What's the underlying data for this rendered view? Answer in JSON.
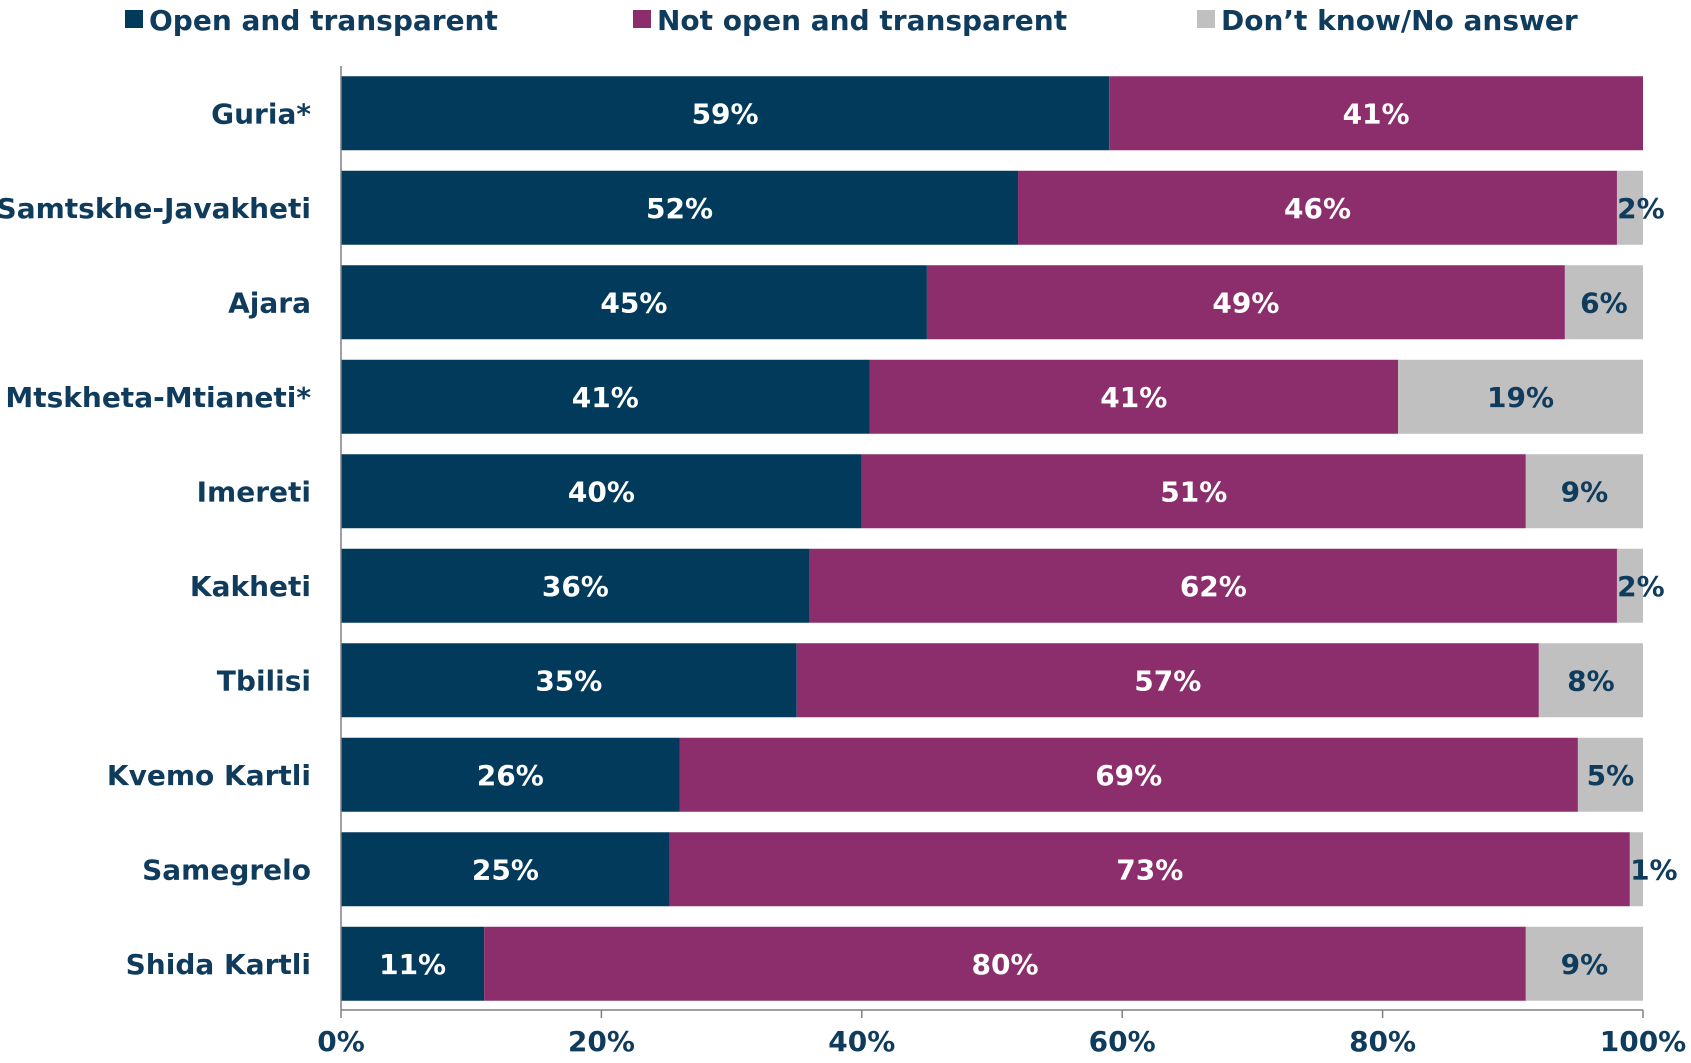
{
  "chart_data": {
    "type": "bar",
    "orientation": "horizontal",
    "stacked": true,
    "categories": [
      "Guria*",
      "Samtskhe-Javakheti",
      "Ajara",
      "Mtskheta-Mtianeti*",
      "Imereti",
      "Kakheti",
      "Tbilisi",
      "Kvemo Kartli",
      "Samegrelo",
      "Shida Kartli"
    ],
    "series": [
      {
        "name": "Open and transparent",
        "color": "#023a5c",
        "values": [
          59,
          52,
          45,
          41,
          40,
          36,
          35,
          26,
          25,
          11
        ],
        "labels": [
          "59%",
          "52%",
          "45%",
          "41%",
          "40%",
          "36%",
          "35%",
          "26%",
          "25%",
          "11%"
        ]
      },
      {
        "name": "Not open and transparent",
        "color": "#8b2e6b",
        "values": [
          41,
          46,
          49,
          41,
          51,
          62,
          57,
          69,
          73,
          80
        ],
        "labels": [
          "41%",
          "46%",
          "49%",
          "41%",
          "51%",
          "62%",
          "57%",
          "69%",
          "73%",
          "80%"
        ]
      },
      {
        "name": "Don’t know/No answer",
        "color": "#c0c0c0",
        "values": [
          0,
          2,
          6,
          19,
          9,
          2,
          8,
          5,
          1,
          9
        ],
        "labels": [
          "",
          "2%",
          "6%",
          "19%",
          "9%",
          "2%",
          "8%",
          "5%",
          "1%",
          "9%"
        ]
      }
    ],
    "xlim": [
      0,
      100
    ],
    "x_ticks": [
      "0%",
      "20%",
      "40%",
      "60%",
      "80%",
      "100%"
    ],
    "legend_position": "top",
    "grid": false
  }
}
